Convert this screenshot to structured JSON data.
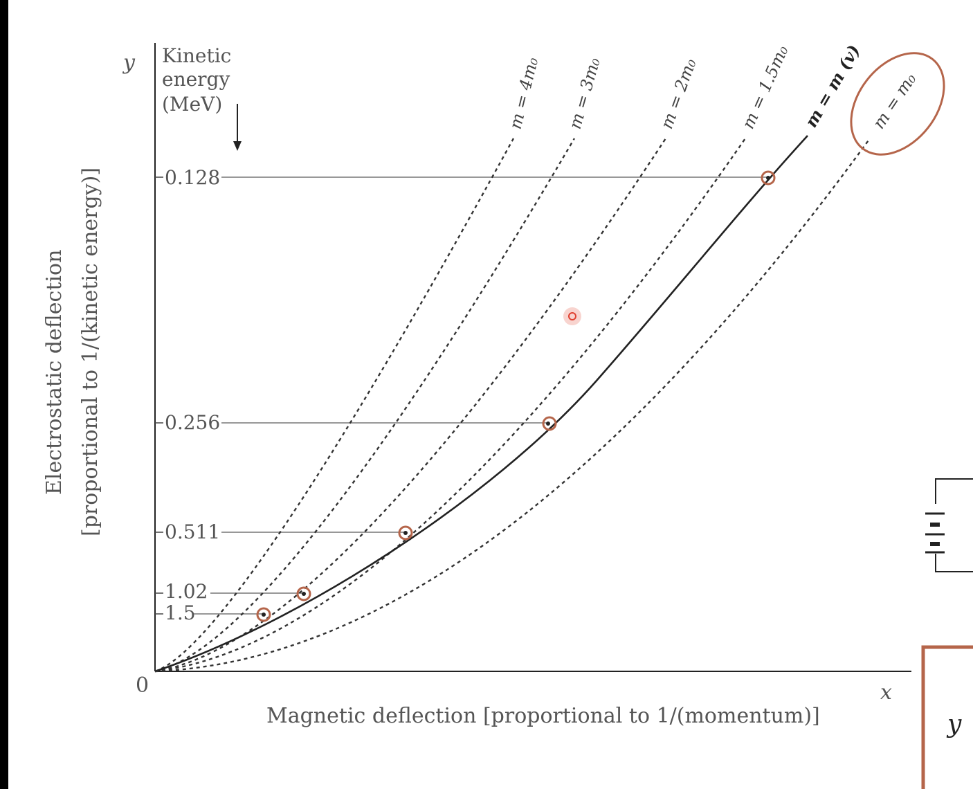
{
  "chart_data": {
    "type": "line",
    "x_axis": {
      "label": "Magnetic deflection [proportional to 1/(momentum)]",
      "symbol": "x"
    },
    "y_axis": {
      "label_line1": "Electrostatic deflection",
      "label_line2": "[proportional to 1/(kinetic energy)]",
      "symbol": "y",
      "secondary_label": [
        "Kinetic",
        "energy",
        "(MeV)"
      ]
    },
    "origin_label": "0",
    "energy_ticks": [
      "0.128",
      "0.256",
      "0.511",
      "1.02",
      "1.5"
    ],
    "series": [
      {
        "name": "m = 4m₀",
        "style": "dashed",
        "mass_multiple": 4
      },
      {
        "name": "m = 3m₀",
        "style": "dashed",
        "mass_multiple": 3
      },
      {
        "name": "m = 2m₀",
        "style": "dashed",
        "mass_multiple": 2
      },
      {
        "name": "m = 1.5m₀",
        "style": "dashed",
        "mass_multiple": 1.5
      },
      {
        "name": "m = m (v)",
        "style": "solid",
        "relativistic": true
      },
      {
        "name": "m = m₀",
        "style": "dashed",
        "mass_multiple": 1,
        "highlighted": true
      }
    ],
    "measured_points_energy_mev": [
      0.128,
      0.256,
      0.511,
      1.02,
      1.5
    ],
    "colors": {
      "highlight": "#b5654a",
      "text": "#555555",
      "curve": "#222222",
      "pointer": "#e04030"
    }
  },
  "side_fragment": {
    "symbol": "y"
  }
}
